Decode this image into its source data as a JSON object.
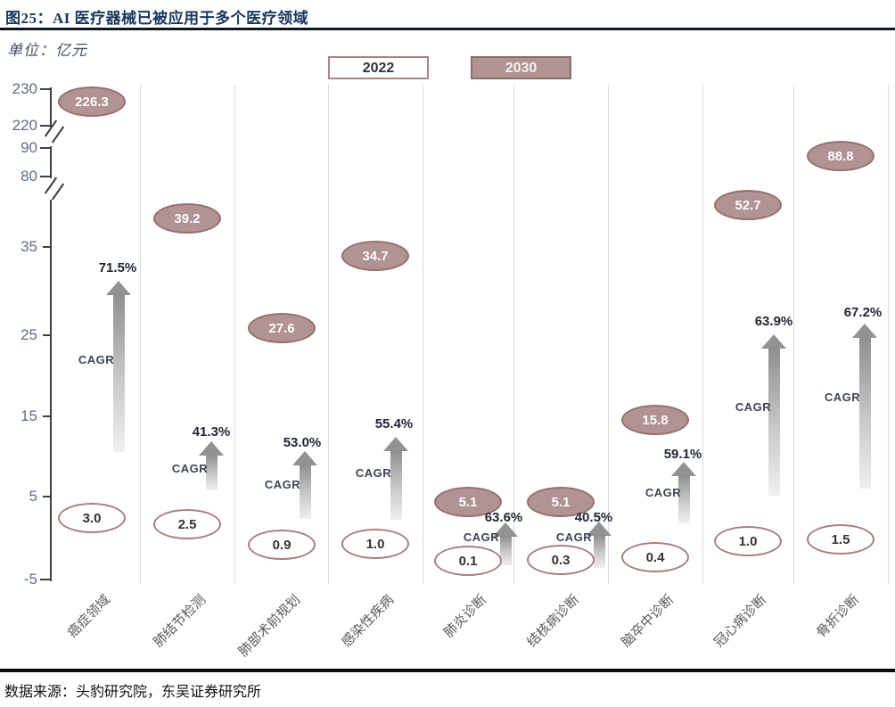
{
  "figure": {
    "title": "图25：AI 医疗器械已被应用于多个医疗领域",
    "unit_label": "单位：亿元",
    "source": "数据来源：头豹研究院，东吴证券研究所"
  },
  "legend": {
    "items": [
      {
        "label": "2022",
        "style": "outline"
      },
      {
        "label": "2030",
        "style": "filled"
      }
    ]
  },
  "chart_data": {
    "type": "scatter",
    "title": "AI 医疗器械已被应用于多个医疗领域",
    "unit": "亿元",
    "categories": [
      "癌症领域",
      "肺结节检测",
      "肺部术前规划",
      "感染性疾病",
      "肺炎诊断",
      "结核病诊断",
      "脑卒中诊断",
      "冠心病诊断",
      "骨折诊断"
    ],
    "series": [
      {
        "name": "2022",
        "values": [
          3.0,
          2.5,
          0.9,
          1.0,
          0.1,
          0.3,
          0.4,
          1.0,
          1.5
        ],
        "labels": [
          "3.0",
          "2.5",
          "0.9",
          "1.0",
          "0.1",
          "0.3",
          "0.4",
          "1.0",
          "1.5"
        ]
      },
      {
        "name": "2030",
        "values": [
          226.3,
          39.2,
          27.6,
          34.7,
          5.1,
          5.1,
          15.8,
          52.7,
          88.8
        ],
        "labels": [
          "226.3",
          "39.2",
          "27.6",
          "34.7",
          "5.1",
          "5.1",
          "15.8",
          "52.7",
          "88.8"
        ]
      }
    ],
    "cagr_caption": "CAGR",
    "cagr_labels": [
      "71.5%",
      "41.3%",
      "53.0%",
      "55.4%",
      "63.6%",
      "40.5%",
      "59.1%",
      "63.9%",
      "67.2%"
    ],
    "y_ticks": [
      230,
      220,
      90,
      80,
      35,
      25,
      15,
      5,
      -5
    ],
    "axis_break": true,
    "ylim_segments": [
      [
        -5,
        35
      ],
      [
        80,
        90
      ],
      [
        220,
        230
      ]
    ],
    "grid": "vertical-separators",
    "legend_position": "top-center"
  },
  "colors": {
    "bubble_fill_2030": "#b19393",
    "bubble_border": "#976f6f",
    "title_navy": "#17375d",
    "axis_text": "#5f6e80",
    "arrow_gray": "#8f8f8f",
    "separator_gray": "#d9d9d9"
  }
}
